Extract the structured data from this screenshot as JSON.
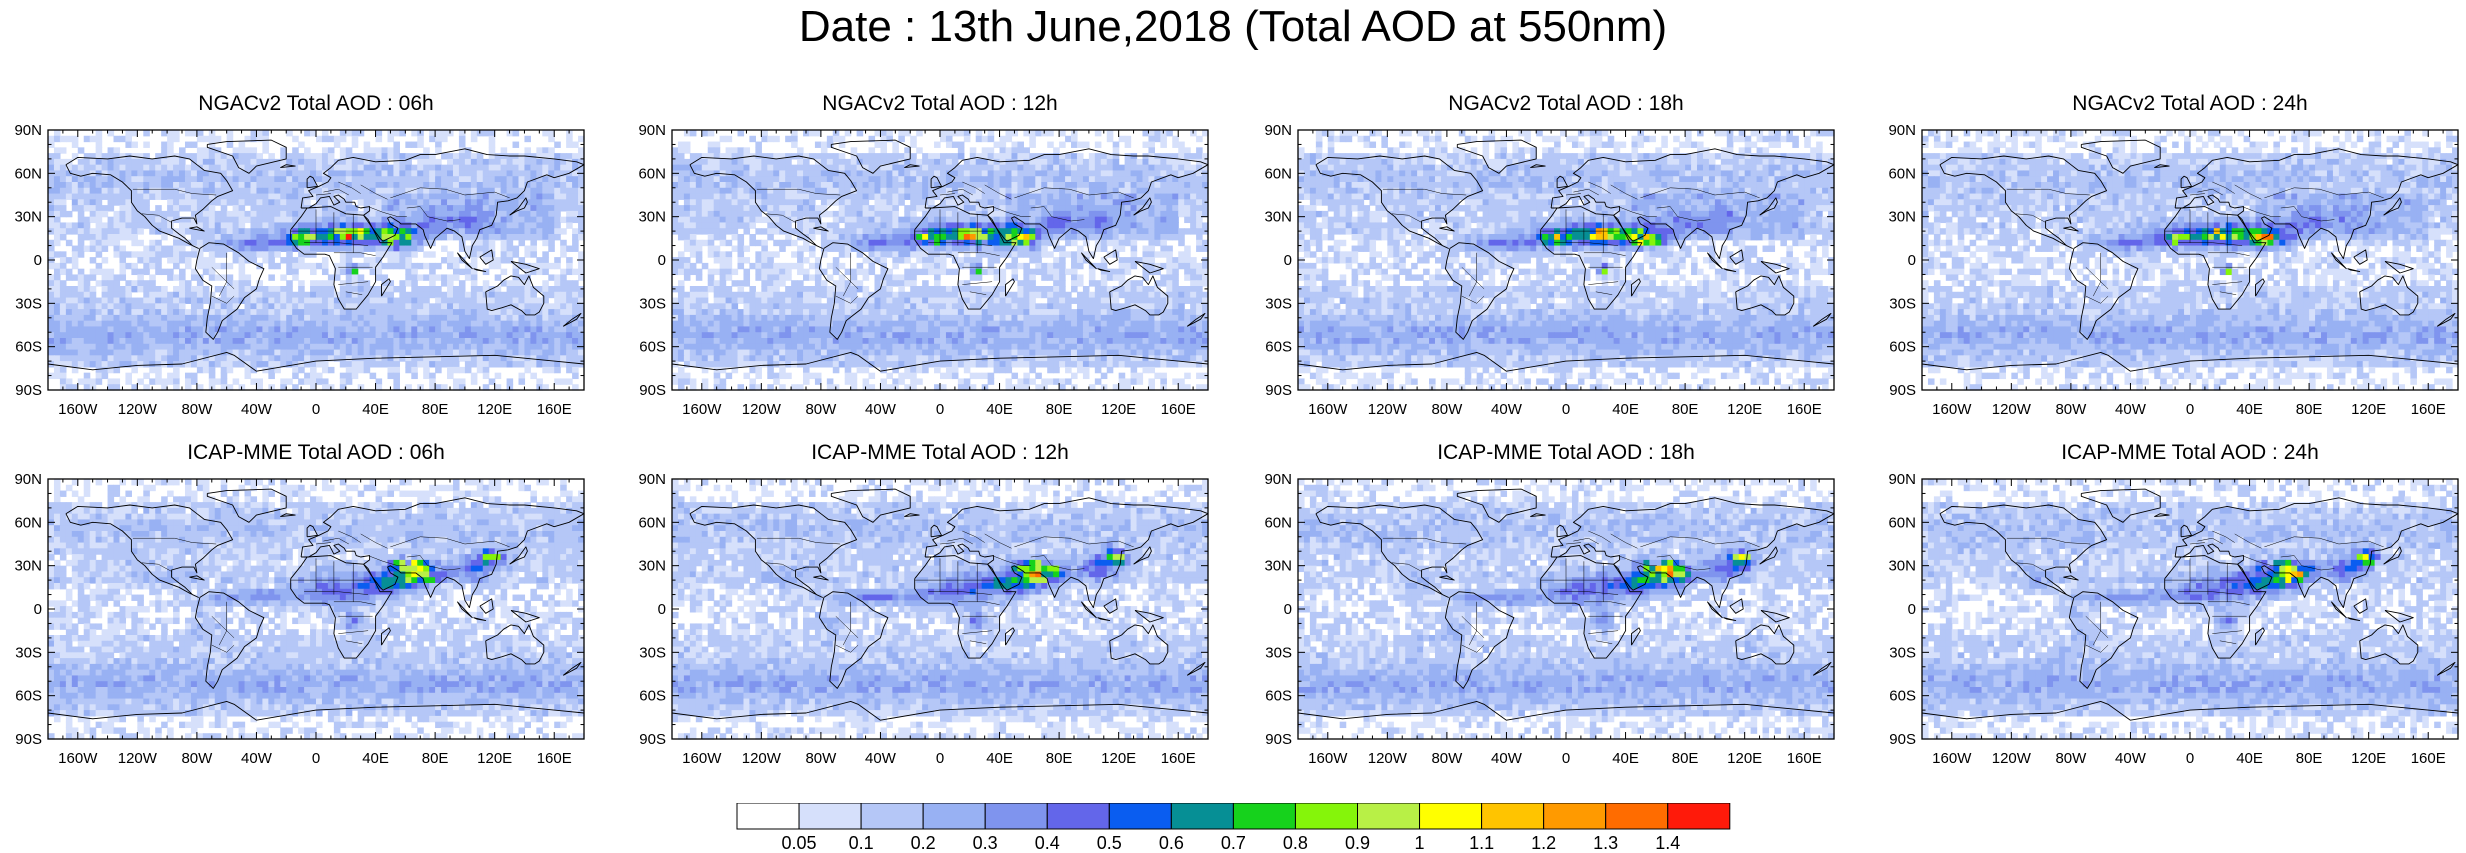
{
  "title": "Date : 13th June,2018 (Total AOD at 550nm)",
  "panels": [
    {
      "title": "NGACv2 Total AOD : 06h",
      "model": "ngac"
    },
    {
      "title": "NGACv2 Total AOD : 12h",
      "model": "ngac"
    },
    {
      "title": "NGACv2 Total AOD : 18h",
      "model": "ngac"
    },
    {
      "title": "NGACv2 Total AOD : 24h",
      "model": "ngac"
    },
    {
      "title": "ICAP-MME Total AOD : 06h",
      "model": "icap"
    },
    {
      "title": "ICAP-MME Total AOD : 12h",
      "model": "icap"
    },
    {
      "title": "ICAP-MME Total AOD : 18h",
      "model": "icap"
    },
    {
      "title": "ICAP-MME Total AOD : 24h",
      "model": "icap"
    }
  ],
  "lat_ticks": [
    "90N",
    "60N",
    "30N",
    "0",
    "30S",
    "60S",
    "90S"
  ],
  "lon_ticks": [
    "160W",
    "120W",
    "80W",
    "40W",
    "0",
    "40E",
    "80E",
    "120E",
    "160E"
  ],
  "colorbar": {
    "levels": [
      "0.05",
      "0.1",
      "0.2",
      "0.3",
      "0.4",
      "0.5",
      "0.6",
      "0.7",
      "0.8",
      "0.9",
      "1",
      "1.1",
      "1.2",
      "1.3",
      "1.4"
    ],
    "colors": [
      "#ffffff",
      "#d6e0fb",
      "#b5c7f7",
      "#98b1f3",
      "#7f94ee",
      "#6366ea",
      "#0a5df0",
      "#068f95",
      "#16d21c",
      "#85f50a",
      "#b8f046",
      "#ffff00",
      "#ffc400",
      "#ff9a00",
      "#ff6c00",
      "#ff1a0a"
    ]
  }
}
